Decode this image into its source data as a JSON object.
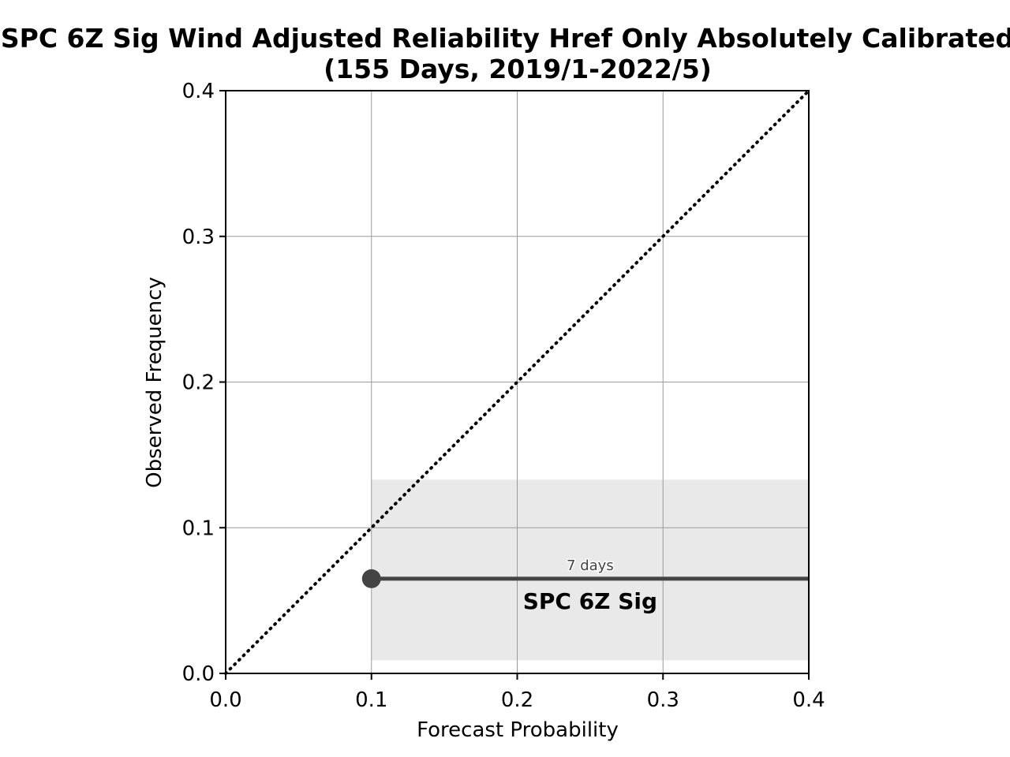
{
  "chart_data": {
    "type": "line",
    "title": "SPC 6Z Sig Wind Adjusted Reliability Href Only Absolutely Calibrated",
    "subtitle": "(155 Days, 2019/1-2022/5)",
    "xlabel": "Forecast Probability",
    "ylabel": "Observed Frequency",
    "xlim": [
      0.0,
      0.4
    ],
    "ylim": [
      0.0,
      0.4
    ],
    "xticks": [
      "0.0",
      "0.1",
      "0.2",
      "0.3",
      "0.4"
    ],
    "yticks": [
      "0.0",
      "0.1",
      "0.2",
      "0.3",
      "0.4"
    ],
    "grid": true,
    "reference_line": {
      "style": "dotted",
      "x": [
        0.0,
        0.4
      ],
      "y": [
        0.0,
        0.4
      ]
    },
    "series": [
      {
        "name": "SPC 6Z Sig",
        "color": "#444444",
        "points": [
          {
            "x": 0.1,
            "y": 0.065
          }
        ],
        "horizontal_extent": [
          0.1,
          0.4
        ],
        "days_label": "7 days",
        "confidence_band": {
          "x": [
            0.1,
            0.4
          ],
          "y": [
            0.009,
            0.133
          ],
          "color": "#e9e9e9"
        }
      }
    ]
  }
}
